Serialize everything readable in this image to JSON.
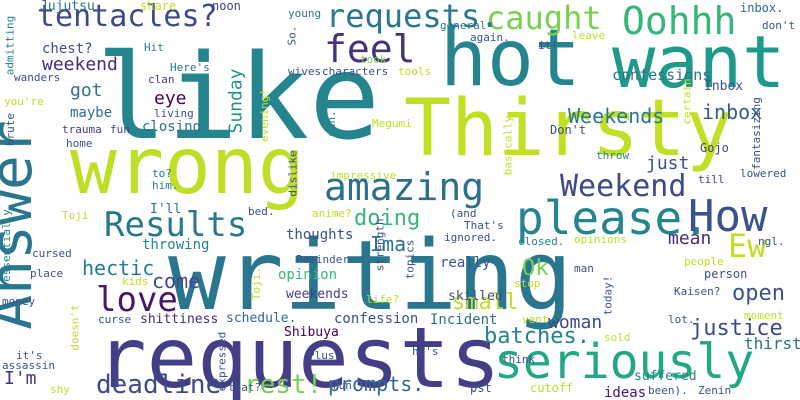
{
  "words": [
    {
      "text": "like",
      "color": "#25858e"
    },
    {
      "text": "writing",
      "color": "#2a768e"
    },
    {
      "text": "requests",
      "color": "#433e85"
    },
    {
      "text": "hot",
      "color": "#25858e"
    },
    {
      "text": "want",
      "color": "#1f9a8a"
    },
    {
      "text": "Thirsty",
      "color": "#c2df23"
    },
    {
      "text": "wrong",
      "color": "#bddf26"
    },
    {
      "text": "Answer",
      "color": "#2a768e"
    },
    {
      "text": "please.",
      "color": "#25858e"
    },
    {
      "text": "How",
      "color": "#3b528b"
    },
    {
      "text": "seriously",
      "color": "#22a884"
    },
    {
      "text": "amazing",
      "color": "#2d708e"
    },
    {
      "text": "Results",
      "color": "#2a788e"
    },
    {
      "text": "tentacles?",
      "color": "#3e4a89"
    },
    {
      "text": "Oohhh",
      "color": "#35b779"
    },
    {
      "text": "caught",
      "color": "#7ad151"
    },
    {
      "text": "feel",
      "color": "#46327e"
    },
    {
      "text": "Weekend",
      "color": "#3e4a89"
    },
    {
      "text": "love",
      "color": "#48186a"
    },
    {
      "text": "Ew",
      "color": "#bddf26"
    },
    {
      "text": "deadline",
      "color": "#3e4a89"
    },
    {
      "text": "requests.",
      "color": "#2a788e"
    },
    {
      "text": "rest!",
      "color": "#7ad151"
    },
    {
      "text": "prompts.",
      "color": "#31688e"
    },
    {
      "text": "open",
      "color": "#3b528b"
    },
    {
      "text": "justice",
      "color": "#3e4a89"
    },
    {
      "text": "Weekends",
      "color": "#2a788e"
    },
    {
      "text": "inbox",
      "color": "#38598c"
    },
    {
      "text": "hectic",
      "color": "#287c8e"
    },
    {
      "text": "weekend",
      "color": "#472d7b"
    },
    {
      "text": "doing",
      "color": "#35b779"
    },
    {
      "text": "Ima",
      "color": "#2c728e"
    },
    {
      "text": "come",
      "color": "#3e4a89"
    },
    {
      "text": "Ok",
      "color": "#75d054"
    },
    {
      "text": "small",
      "color": "#bddf26"
    },
    {
      "text": "batches.",
      "color": "#26828e"
    },
    {
      "text": "eye",
      "color": "#450559"
    },
    {
      "text": "got",
      "color": "#2c738e"
    },
    {
      "text": "maybe",
      "color": "#2c728e"
    },
    {
      "text": "confessions",
      "color": "#2c728e"
    },
    {
      "text": "Sunday",
      "color": "#21918c"
    },
    {
      "text": "mean",
      "color": "#472d7b"
    },
    {
      "text": "woman",
      "color": "#3e4a89"
    },
    {
      "text": "chest?",
      "color": "#3b528b"
    },
    {
      "text": "I'm",
      "color": "#453781"
    },
    {
      "text": "thirsty",
      "color": "#2c728e"
    },
    {
      "text": "I'll",
      "color": "#2a768e"
    },
    {
      "text": "closing",
      "color": "#2d708e"
    },
    {
      "text": "throwing",
      "color": "#25858e"
    },
    {
      "text": "thoughts",
      "color": "#3b528b"
    },
    {
      "text": "opinion",
      "color": "#38b977"
    },
    {
      "text": "weekends",
      "color": "#433e85"
    },
    {
      "text": "confession",
      "color": "#3b528b"
    },
    {
      "text": "schedule.",
      "color": "#31688e"
    },
    {
      "text": "Incident",
      "color": "#2c728e"
    },
    {
      "text": "shittiness",
      "color": "#472d7b"
    },
    {
      "text": "Shibuya",
      "color": "#440154"
    },
    {
      "text": "really",
      "color": "#3b528b"
    },
    {
      "text": "skilled",
      "color": "#3b528b"
    },
    {
      "text": "Inbox",
      "color": "#3b528b"
    },
    {
      "text": "suffered",
      "color": "#25858e"
    },
    {
      "text": "ideas",
      "color": "#48186a"
    },
    {
      "text": "Jujutsu",
      "color": "#2c728e"
    },
    {
      "text": "share",
      "color": "#bddf26"
    },
    {
      "text": "noon",
      "color": "#424086"
    },
    {
      "text": "young",
      "color": "#2a788e"
    },
    {
      "text": "took",
      "color": "#7ad151"
    },
    {
      "text": "general",
      "color": "#2a788e"
    },
    {
      "text": "again.",
      "color": "#3b528b"
    },
    {
      "text": "it!",
      "color": "#3b528b"
    },
    {
      "text": "leave",
      "color": "#bddf26"
    },
    {
      "text": "inbox.",
      "color": "#31688e"
    },
    {
      "text": "don't",
      "color": "#3b528b"
    },
    {
      "text": "So.",
      "color": "#3b528b"
    },
    {
      "text": "Hit",
      "color": "#25858e"
    },
    {
      "text": "clan",
      "color": "#433e85"
    },
    {
      "text": "Here's",
      "color": "#2a788e"
    },
    {
      "text": "living",
      "color": "#3b528b"
    },
    {
      "text": "wives",
      "color": "#3b528b"
    },
    {
      "text": "characters",
      "color": "#3b528b"
    },
    {
      "text": "tools",
      "color": "#bddf26"
    },
    {
      "text": "own.",
      "color": "#25858e"
    },
    {
      "text": "Megumi",
      "color": "#bddf26"
    },
    {
      "text": "Don't",
      "color": "#3b528b"
    },
    {
      "text": "basically",
      "color": "#bddf26"
    },
    {
      "text": "certain",
      "color": "#bddf26"
    },
    {
      "text": "Gojo",
      "color": "#3e4a89"
    },
    {
      "text": "fantasizing",
      "color": "#3b528b"
    },
    {
      "text": "trauma",
      "color": "#433e85"
    },
    {
      "text": "fun",
      "color": "#433e85"
    },
    {
      "text": "home",
      "color": "#3b528b"
    },
    {
      "text": "wanders",
      "color": "#3b528b"
    },
    {
      "text": "evening!",
      "color": "#bddf26"
    },
    {
      "text": "you're",
      "color": "#bddf26"
    },
    {
      "text": "brute",
      "color": "#3b528b"
    },
    {
      "text": "admitting",
      "color": "#25858e"
    },
    {
      "text": "dislike",
      "color": "#3b528b"
    },
    {
      "text": "impressive",
      "color": "#bddf26"
    },
    {
      "text": "throw",
      "color": "#25858e"
    },
    {
      "text": "just",
      "color": "#3b528b"
    },
    {
      "text": "till",
      "color": "#433e85"
    },
    {
      "text": "to?",
      "color": "#2a788e"
    },
    {
      "text": "him.",
      "color": "#25858e"
    },
    {
      "text": "bed.",
      "color": "#3b528b"
    },
    {
      "text": "anime?",
      "color": "#bddf26"
    },
    {
      "text": "strength.",
      "color": "#3b528b"
    },
    {
      "text": "(and",
      "color": "#3b528b"
    },
    {
      "text": "That's",
      "color": "#3b528b"
    },
    {
      "text": "ignored.",
      "color": "#3b528b"
    },
    {
      "text": "closed.",
      "color": "#25858e"
    },
    {
      "text": "opinions",
      "color": "#bddf26"
    },
    {
      "text": "ngl.",
      "color": "#3b528b"
    },
    {
      "text": "lowered",
      "color": "#3b528b"
    },
    {
      "text": "people",
      "color": "#bddf26"
    },
    {
      "text": "person",
      "color": "#3b528b"
    },
    {
      "text": "Toji",
      "color": "#bddf26"
    },
    {
      "text": "cursed",
      "color": "#3b528b"
    },
    {
      "text": "Reminder",
      "color": "#3b528b"
    },
    {
      "text": "topics",
      "color": "#3b528b"
    },
    {
      "text": "place",
      "color": "#3b528b"
    },
    {
      "text": "kids",
      "color": "#bddf26"
    },
    {
      "text": "life?",
      "color": "#bddf26"
    },
    {
      "text": "stop",
      "color": "#bddf26"
    },
    {
      "text": "man",
      "color": "#3b528b"
    },
    {
      "text": "today!",
      "color": "#3b528b"
    },
    {
      "text": "Kaisen?",
      "color": "#3b528b"
    },
    {
      "text": "lot.",
      "color": "#3b528b"
    },
    {
      "text": "moment",
      "color": "#bddf26"
    },
    {
      "text": "essentially",
      "color": "#25858e"
    },
    {
      "text": "money",
      "color": "#3b528b"
    },
    {
      "text": "curse",
      "color": "#3b528b"
    },
    {
      "text": "Toji.",
      "color": "#bddf26"
    },
    {
      "text": "vent",
      "color": "#bddf26"
    },
    {
      "text": "doesn't",
      "color": "#bddf26"
    },
    {
      "text": "he's",
      "color": "#3b528b"
    },
    {
      "text": "sold",
      "color": "#bddf26"
    },
    {
      "text": "it's",
      "color": "#3b528b"
    },
    {
      "text": "assassin",
      "color": "#3b528b"
    },
    {
      "text": "expressed",
      "color": "#3b528b"
    },
    {
      "text": "Plus",
      "color": "#3b528b"
    },
    {
      "text": "shy",
      "color": "#bddf26"
    },
    {
      "text": "that?",
      "color": "#3b528b"
    },
    {
      "text": "run",
      "color": "#3b528b"
    },
    {
      "text": "pst",
      "color": "#3b528b"
    },
    {
      "text": "cutoff",
      "color": "#bddf26"
    },
    {
      "text": "been).",
      "color": "#3b528b"
    },
    {
      "text": "Zenin",
      "color": "#3b528b"
    },
    {
      "text": "think",
      "color": "#3b528b"
    }
  ]
}
